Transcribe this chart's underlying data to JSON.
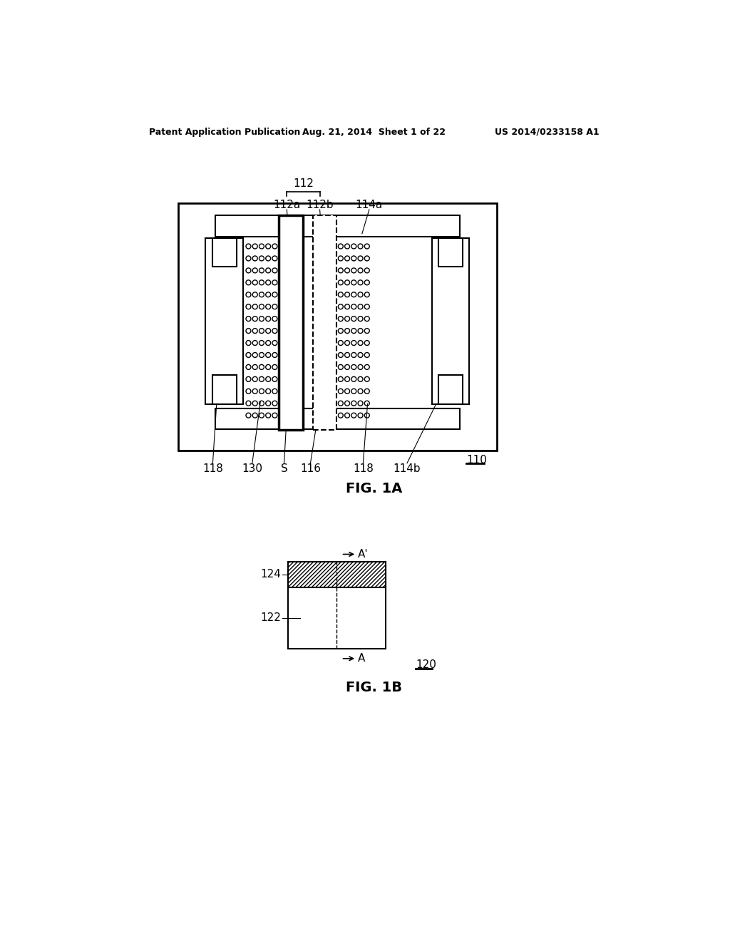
{
  "background_color": "#ffffff",
  "header_left": "Patent Application Publication",
  "header_center": "Aug. 21, 2014  Sheet 1 of 22",
  "header_right": "US 2014/0233158 A1",
  "fig1a_label": "FIG. 1A",
  "fig1b_label": "FIG. 1B",
  "ref_110": "110",
  "ref_112": "112",
  "ref_112a": "112a",
  "ref_112b": "112b",
  "ref_114a": "114a",
  "ref_114b": "114b",
  "ref_116": "116",
  "ref_118_left": "118",
  "ref_118_right": "118",
  "ref_120": "120",
  "ref_122": "122",
  "ref_124": "124",
  "ref_130": "130",
  "ref_S": "S"
}
